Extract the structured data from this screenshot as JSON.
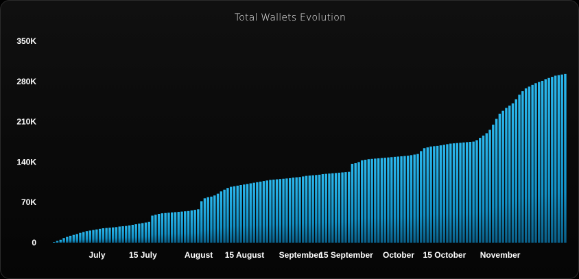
{
  "chart_data": {
    "type": "bar",
    "title": "Total Wallets Evolution",
    "xlabel": "",
    "ylabel": "",
    "ylim": [
      0,
      350000
    ],
    "y_ticks": [
      {
        "value": 0,
        "label": "0"
      },
      {
        "value": 70000,
        "label": "70K"
      },
      {
        "value": 140000,
        "label": "140K"
      },
      {
        "value": 210000,
        "label": "210K"
      },
      {
        "value": 280000,
        "label": "280K"
      },
      {
        "value": 350000,
        "label": "350K"
      }
    ],
    "x_ticks": [
      {
        "label": "July",
        "date": "2023-07-01"
      },
      {
        "label": "15 July",
        "date": "2023-07-15"
      },
      {
        "label": "August",
        "date": "2023-08-01"
      },
      {
        "label": "15 August",
        "date": "2023-08-15"
      },
      {
        "label": "September",
        "date": "2023-09-01"
      },
      {
        "label": "15 September",
        "date": "2023-09-15"
      },
      {
        "label": "October",
        "date": "2023-10-01"
      },
      {
        "label": "15 October",
        "date": "2023-10-15"
      },
      {
        "label": "November",
        "date": "2023-11-01"
      }
    ],
    "grid": false,
    "legend": "none",
    "bar_color": "#1aa6dd",
    "start_date": "2023-06-18",
    "values": [
      1000,
      3000,
      5000,
      8000,
      10000,
      12000,
      13500,
      15000,
      17000,
      18500,
      20000,
      21000,
      22000,
      23000,
      24000,
      25000,
      25500,
      26000,
      26500,
      27000,
      28000,
      28500,
      29000,
      30000,
      31000,
      32000,
      33000,
      34000,
      35000,
      36000,
      47000,
      48500,
      50000,
      51000,
      51500,
      52000,
      52500,
      53000,
      53500,
      54000,
      54500,
      55000,
      56000,
      57000,
      58000,
      72000,
      77000,
      79000,
      80000,
      82000,
      85000,
      89000,
      92000,
      95000,
      97000,
      98000,
      99000,
      100000,
      101000,
      102000,
      103000,
      104000,
      105000,
      106000,
      107000,
      108000,
      109000,
      109500,
      110000,
      110500,
      111000,
      111500,
      112000,
      113000,
      113500,
      114000,
      115000,
      116000,
      116500,
      117000,
      117500,
      118000,
      119000,
      119500,
      120000,
      120500,
      121000,
      121500,
      122000,
      122500,
      123000,
      137000,
      138000,
      140000,
      143000,
      144000,
      145000,
      145500,
      146000,
      146500,
      147000,
      147500,
      148000,
      148500,
      149000,
      149500,
      150000,
      150500,
      151000,
      152000,
      153000,
      154000,
      159000,
      164000,
      165500,
      167000,
      167500,
      168000,
      169000,
      170000,
      171000,
      172000,
      172500,
      173000,
      173500,
      174000,
      174500,
      175000,
      175500,
      178000,
      182000,
      186000,
      190000,
      196000,
      205000,
      215000,
      224000,
      229000,
      234000,
      238000,
      242000,
      249000,
      257000,
      263000,
      268000,
      271000,
      274000,
      277000,
      279000,
      281000,
      284000,
      286000,
      288000,
      290000,
      291000,
      292000,
      293000
    ]
  }
}
